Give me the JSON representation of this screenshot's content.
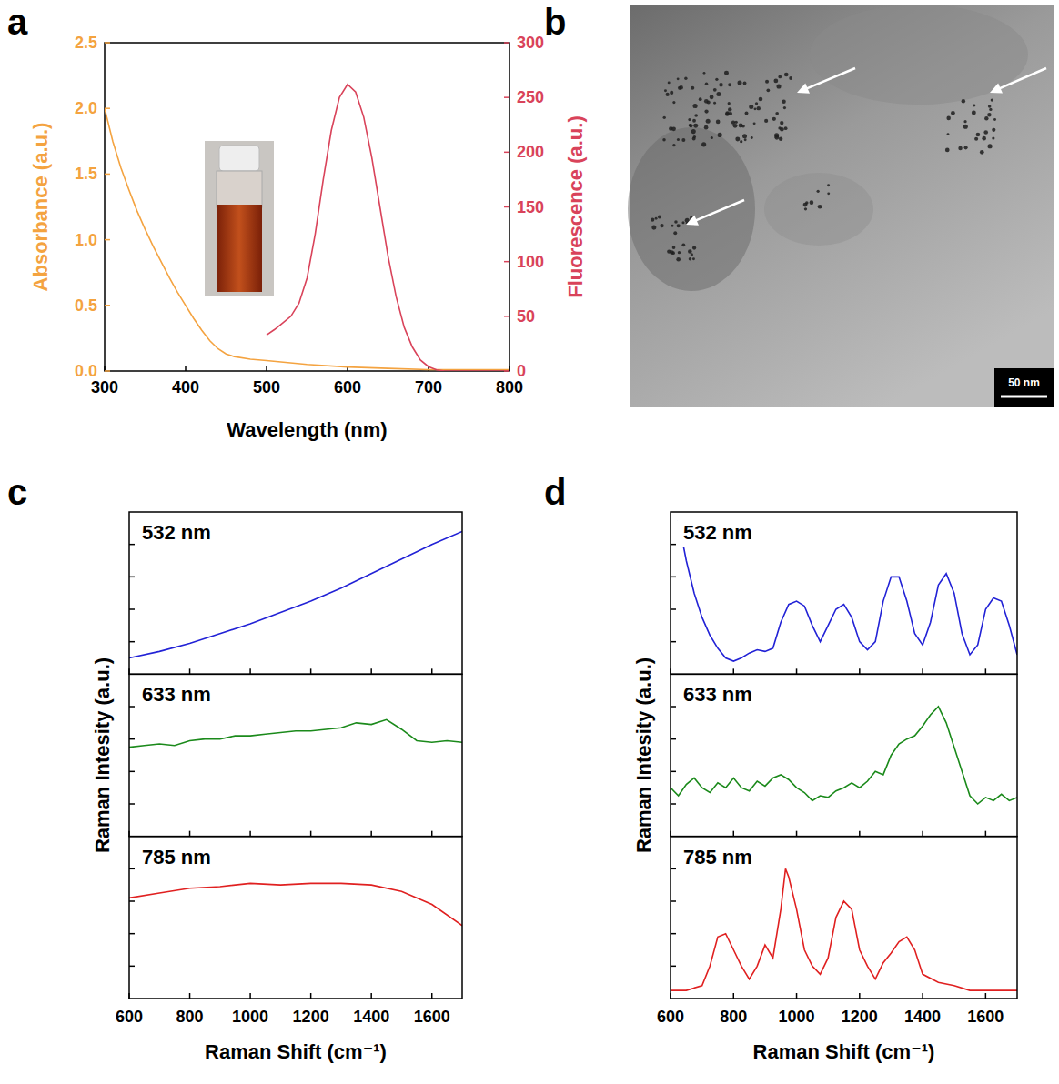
{
  "chart_data": [
    {
      "panel": "a",
      "type": "line",
      "xlabel": "Wavelength (nm)",
      "ylabel": "Absorbance (a.u.)",
      "y2label": "Fluorescence (a.u.)",
      "xlim": [
        300,
        800
      ],
      "xticks": [
        300,
        400,
        500,
        600,
        700,
        800
      ],
      "ylim": [
        0,
        2.5
      ],
      "yticks": [
        {
          "value": 0,
          "label": "0.0"
        },
        0.5,
        {
          "value": 1,
          "label": "1.0"
        },
        1.5,
        {
          "value": 2,
          "label": "2.0"
        },
        2.5
      ],
      "y2lim": [
        0,
        300
      ],
      "y2ticks": [
        0,
        50,
        100,
        150,
        200,
        250,
        300
      ],
      "series": [
        {
          "color": "#f4a340",
          "x": [
            300,
            310,
            320,
            330,
            340,
            350,
            360,
            370,
            380,
            390,
            400,
            410,
            420,
            430,
            440,
            450,
            460,
            480,
            500,
            550,
            600,
            650,
            700,
            800
          ],
          "values": [
            2.0,
            1.75,
            1.55,
            1.38,
            1.22,
            1.08,
            0.95,
            0.83,
            0.71,
            0.6,
            0.5,
            0.4,
            0.31,
            0.23,
            0.17,
            0.13,
            0.11,
            0.09,
            0.08,
            0.05,
            0.03,
            0.02,
            0.01,
            0.01
          ]
        },
        {
          "color": "#d9435a",
          "axis": "y2",
          "x": [
            500,
            510,
            520,
            530,
            540,
            550,
            560,
            570,
            580,
            590,
            600,
            610,
            620,
            630,
            640,
            650,
            660,
            670,
            680,
            690,
            700,
            710,
            720,
            740,
            800
          ],
          "values": [
            33,
            38,
            44,
            50,
            62,
            85,
            125,
            175,
            220,
            250,
            262,
            255,
            232,
            195,
            150,
            105,
            68,
            40,
            22,
            10,
            4,
            1,
            0,
            0,
            0
          ]
        }
      ]
    },
    {
      "panel": "b",
      "type": "image",
      "scale_bar": "50 nm"
    },
    {
      "panel": "c",
      "type": "line",
      "tick_labels": "x",
      "xlabel": "Raman Shift (cm⁻¹)",
      "ylabel": "Raman Intesity (a.u.)",
      "xlim": [
        600,
        1700
      ],
      "xticks": [
        600,
        800,
        1000,
        1200,
        1400,
        1600
      ],
      "series": [
        {
          "name": "532 nm",
          "color": "#2222d6",
          "ylim": [
            0,
            1
          ],
          "yticks": [
            0.2,
            0.4,
            0.6,
            0.8
          ],
          "x": [
            600,
            700,
            800,
            900,
            1000,
            1100,
            1200,
            1300,
            1400,
            1500,
            1600,
            1700
          ],
          "values": [
            0.1,
            0.14,
            0.19,
            0.25,
            0.31,
            0.38,
            0.45,
            0.53,
            0.62,
            0.71,
            0.8,
            0.88
          ]
        },
        {
          "name": "633 nm",
          "color": "#1b8a1b",
          "ylim": [
            0,
            1
          ],
          "yticks": [
            0.2,
            0.4,
            0.6,
            0.8
          ],
          "x": [
            600,
            650,
            700,
            750,
            800,
            850,
            900,
            950,
            1000,
            1050,
            1100,
            1150,
            1200,
            1250,
            1300,
            1350,
            1400,
            1450,
            1500,
            1550,
            1600,
            1650,
            1700
          ],
          "values": [
            0.55,
            0.56,
            0.57,
            0.56,
            0.59,
            0.6,
            0.6,
            0.62,
            0.62,
            0.63,
            0.64,
            0.65,
            0.65,
            0.66,
            0.67,
            0.7,
            0.69,
            0.72,
            0.66,
            0.59,
            0.58,
            0.59,
            0.58
          ]
        },
        {
          "name": "785 nm",
          "color": "#e02020",
          "ylim": [
            0,
            1
          ],
          "yticks": [
            0.2,
            0.4,
            0.6,
            0.8
          ],
          "x": [
            600,
            700,
            800,
            900,
            1000,
            1100,
            1200,
            1300,
            1400,
            1500,
            1600,
            1700
          ],
          "values": [
            0.62,
            0.65,
            0.68,
            0.69,
            0.71,
            0.7,
            0.71,
            0.71,
            0.7,
            0.66,
            0.58,
            0.45
          ]
        }
      ]
    },
    {
      "panel": "d",
      "type": "line",
      "tick_labels": "x",
      "xlabel": "Raman Shift (cm⁻¹)",
      "ylabel": "Raman Intesity (a.u.)",
      "xlim": [
        600,
        1700
      ],
      "xticks": [
        600,
        800,
        1000,
        1200,
        1400,
        1600
      ],
      "series": [
        {
          "name": "532 nm",
          "color": "#2222d6",
          "ylim": [
            0,
            1
          ],
          "yticks": [
            0.2,
            0.4,
            0.6,
            0.8
          ],
          "x": [
            625,
            650,
            675,
            700,
            725,
            750,
            775,
            800,
            825,
            850,
            875,
            900,
            925,
            950,
            975,
            1000,
            1025,
            1050,
            1075,
            1100,
            1125,
            1150,
            1175,
            1200,
            1225,
            1250,
            1275,
            1300,
            1325,
            1350,
            1375,
            1400,
            1425,
            1450,
            1475,
            1500,
            1525,
            1550,
            1575,
            1600,
            1625,
            1650,
            1675,
            1700
          ],
          "values": [
            0.95,
            0.7,
            0.5,
            0.35,
            0.24,
            0.16,
            0.1,
            0.08,
            0.1,
            0.13,
            0.15,
            0.14,
            0.16,
            0.32,
            0.43,
            0.45,
            0.42,
            0.3,
            0.2,
            0.3,
            0.4,
            0.43,
            0.35,
            0.2,
            0.15,
            0.2,
            0.45,
            0.6,
            0.6,
            0.45,
            0.25,
            0.18,
            0.32,
            0.55,
            0.62,
            0.5,
            0.25,
            0.12,
            0.18,
            0.4,
            0.47,
            0.45,
            0.3,
            0.12
          ]
        },
        {
          "name": "633 nm",
          "color": "#1b8a1b",
          "ylim": [
            0,
            1
          ],
          "yticks": [
            0.2,
            0.4,
            0.6,
            0.8
          ],
          "x": [
            600,
            625,
            650,
            675,
            700,
            725,
            750,
            775,
            800,
            825,
            850,
            875,
            900,
            925,
            950,
            975,
            1000,
            1025,
            1050,
            1075,
            1100,
            1125,
            1150,
            1175,
            1200,
            1225,
            1250,
            1275,
            1300,
            1325,
            1350,
            1375,
            1400,
            1425,
            1450,
            1475,
            1500,
            1525,
            1550,
            1575,
            1600,
            1625,
            1650,
            1675,
            1700
          ],
          "values": [
            0.3,
            0.25,
            0.32,
            0.36,
            0.3,
            0.27,
            0.33,
            0.3,
            0.36,
            0.3,
            0.28,
            0.34,
            0.31,
            0.36,
            0.38,
            0.35,
            0.3,
            0.27,
            0.22,
            0.25,
            0.24,
            0.28,
            0.3,
            0.33,
            0.3,
            0.34,
            0.4,
            0.38,
            0.5,
            0.57,
            0.6,
            0.62,
            0.68,
            0.75,
            0.8,
            0.7,
            0.55,
            0.4,
            0.25,
            0.2,
            0.24,
            0.22,
            0.26,
            0.22,
            0.24
          ]
        },
        {
          "name": "785 nm",
          "color": "#e02020",
          "ylim": [
            0,
            1
          ],
          "yticks": [
            0.2,
            0.4,
            0.6,
            0.8
          ],
          "x": [
            600,
            650,
            700,
            725,
            750,
            775,
            800,
            825,
            850,
            875,
            900,
            925,
            950,
            965,
            975,
            1000,
            1025,
            1050,
            1075,
            1100,
            1125,
            1150,
            1175,
            1200,
            1225,
            1250,
            1275,
            1300,
            1325,
            1350,
            1375,
            1400,
            1450,
            1500,
            1550,
            1600,
            1650,
            1700
          ],
          "values": [
            0.05,
            0.05,
            0.08,
            0.2,
            0.38,
            0.4,
            0.3,
            0.2,
            0.12,
            0.2,
            0.33,
            0.25,
            0.55,
            0.8,
            0.75,
            0.55,
            0.3,
            0.2,
            0.15,
            0.25,
            0.5,
            0.6,
            0.55,
            0.3,
            0.2,
            0.12,
            0.22,
            0.28,
            0.35,
            0.38,
            0.3,
            0.15,
            0.1,
            0.08,
            0.05,
            0.05,
            0.05,
            0.05
          ]
        }
      ]
    }
  ]
}
